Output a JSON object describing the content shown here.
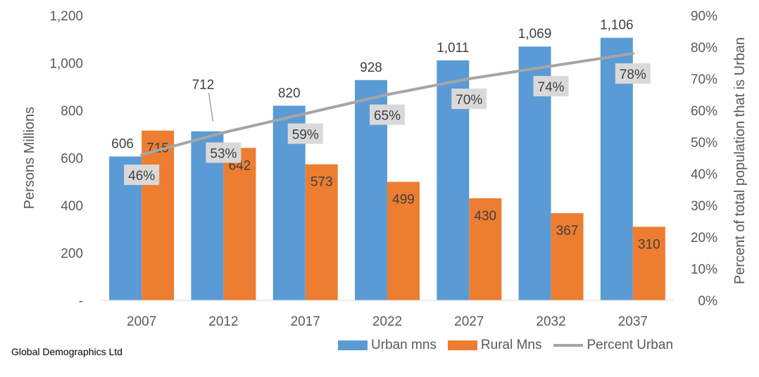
{
  "chart_data": {
    "type": "bar",
    "categories": [
      "2007",
      "2012",
      "2017",
      "2022",
      "2027",
      "2032",
      "2037"
    ],
    "series": [
      {
        "name": "Urban mns",
        "kind": "bar",
        "axis": "left",
        "color": "#5B9BD5",
        "values": [
          606,
          712,
          820,
          928,
          1011,
          1069,
          1106
        ],
        "labels": [
          "606",
          "712",
          "820",
          "928",
          "1,011",
          "1,069",
          "1,106"
        ]
      },
      {
        "name": "Rural Mns",
        "kind": "bar",
        "axis": "left",
        "color": "#ED7D31",
        "values": [
          715,
          642,
          573,
          499,
          430,
          367,
          310
        ],
        "labels": [
          "715",
          "642",
          "573",
          "499",
          "430",
          "367",
          "310"
        ]
      },
      {
        "name": "Percent Urban",
        "kind": "line",
        "axis": "right",
        "color": "#A5A5A5",
        "values": [
          46,
          53,
          59,
          65,
          70,
          74,
          78
        ],
        "labels": [
          "46%",
          "53%",
          "59%",
          "65%",
          "70%",
          "74%",
          "78%"
        ]
      }
    ],
    "ylabel": "Persons Millions",
    "y2label": "Percent of total population that is Urban",
    "ylim": [
      0,
      1200
    ],
    "y2lim": [
      0,
      90
    ],
    "yticks": [
      "-",
      "200",
      "400",
      "600",
      "800",
      "1,000",
      "1,200"
    ],
    "y2ticks": [
      "0%",
      "10%",
      "20%",
      "30%",
      "40%",
      "50%",
      "60%",
      "70%",
      "80%",
      "90%"
    ],
    "grid": false,
    "legend_position": "bottom-right"
  },
  "source": "Global Demographics Ltd"
}
